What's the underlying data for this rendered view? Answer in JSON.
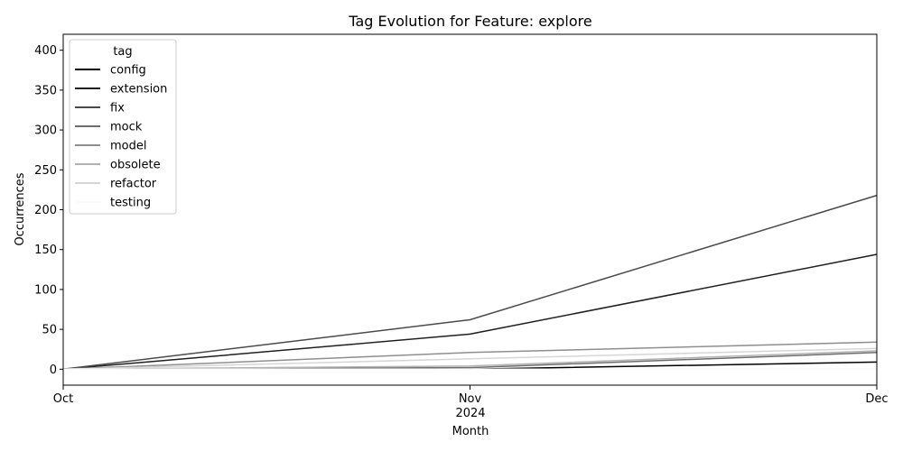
{
  "chart_data": {
    "type": "line",
    "title": "Tag Evolution for Feature: explore",
    "xlabel": "Month",
    "ylabel": "Occurrences",
    "x_ticks": [
      "Oct",
      "Nov",
      "Dec"
    ],
    "x_year_label": "2024",
    "ylim": [
      -20,
      420
    ],
    "y_ticks": [
      0,
      50,
      100,
      150,
      200,
      250,
      300,
      350,
      400
    ],
    "grid": false,
    "legend": {
      "title": "tag",
      "placement": "top-left"
    },
    "series": [
      {
        "name": "config",
        "color": "#000000",
        "values": [
          0,
          0,
          9
        ]
      },
      {
        "name": "extension",
        "color": "#1f1f1f",
        "values": [
          0,
          44,
          144
        ]
      },
      {
        "name": "fix",
        "color": "#4a4a4a",
        "values": [
          0,
          62,
          218
        ]
      },
      {
        "name": "mock",
        "color": "#6d6d6d",
        "values": [
          0,
          2,
          21
        ]
      },
      {
        "name": "model",
        "color": "#8f8f8f",
        "values": [
          0,
          21,
          34
        ]
      },
      {
        "name": "obsolete",
        "color": "#b2b2b2",
        "values": [
          0,
          4,
          23
        ]
      },
      {
        "name": "refactor",
        "color": "#d6d6d6",
        "values": [
          0,
          13,
          26
        ]
      },
      {
        "name": "testing",
        "color": "#fafafa",
        "values": [
          0,
          0,
          0
        ]
      }
    ]
  }
}
